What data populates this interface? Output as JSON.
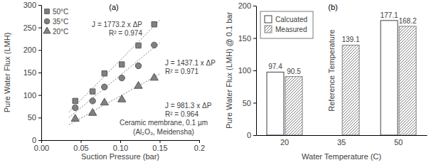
{
  "chart_data": [
    {
      "type": "scatter",
      "title": "(a)",
      "x_label": "Suction Pressure (bar)",
      "y_label": "Pure Water Flux (LMH)",
      "x": [
        0.043,
        0.065,
        0.08,
        0.102,
        0.123,
        0.143
      ],
      "xlim": [
        0,
        0.2
      ],
      "xticks": [
        {
          "value": 0,
          "label": "0.00"
        },
        0.05,
        {
          "value": 0.1,
          "label": "0.10"
        },
        0.15,
        0.2
      ],
      "ylim": [
        0,
        300
      ],
      "yticks": [
        0,
        50,
        100,
        150,
        200,
        250,
        300
      ],
      "grid": false,
      "legend": "top-left",
      "series": [
        {
          "name": "50°C",
          "color": "#808080",
          "marker": "square",
          "line_style": "dotted",
          "values": [
            87,
            108,
            148,
            168,
            210,
            257
          ],
          "trend": {
            "x": [
              0.035,
              0.15
            ],
            "values": [
              62,
              266
            ]
          },
          "fit_label": "J = 1773.2 x ΔP",
          "r2_label": "R² = 0.974"
        },
        {
          "name": "35°C",
          "color": "#808080",
          "marker": "circle",
          "line_style": "dotted",
          "values": [
            72,
            87,
            118,
            138,
            165,
            211
          ],
          "trend": {
            "x": [
              0.035,
              0.15
            ],
            "values": [
              50,
              216
            ]
          },
          "fit_label": "J = 1437.1 x ΔP",
          "r2_label": "R² = 0.971"
        },
        {
          "name": "20°C",
          "color": "#808080",
          "marker": "triangle",
          "line_style": "dotted",
          "values": [
            47,
            60,
            83,
            90,
            120,
            138
          ],
          "trend": {
            "x": [
              0.035,
              0.15
            ],
            "values": [
              34,
              147
            ]
          },
          "fit_label": "J = 981.3 x ΔP",
          "r2_label": "R² = 0.964"
        }
      ],
      "annotations": [
        "Ceramic membrane, 0.1 µm",
        "(Al₂O₃, Meidensha)"
      ]
    },
    {
      "type": "bar",
      "title": "(b)",
      "x_label": "Water Temperature (C)",
      "y_label": "Pure Water Flux (LMH) @ 0.1 bar",
      "categories": [
        "20",
        "35",
        "50"
      ],
      "ylim": [
        0,
        200
      ],
      "yticks": [
        0,
        50,
        100,
        150,
        200
      ],
      "grid": false,
      "legend": "top-left",
      "data_labels": true,
      "series": [
        {
          "name": "Calcuated",
          "color": "#ffffff",
          "values": [
            97.4,
            null,
            177.1
          ]
        },
        {
          "name": "Measured",
          "color": "#808080",
          "marker": "hatch",
          "values": [
            90.5,
            139.1,
            168.2
          ]
        }
      ],
      "annotations": [
        "Reference Temperature"
      ]
    }
  ]
}
